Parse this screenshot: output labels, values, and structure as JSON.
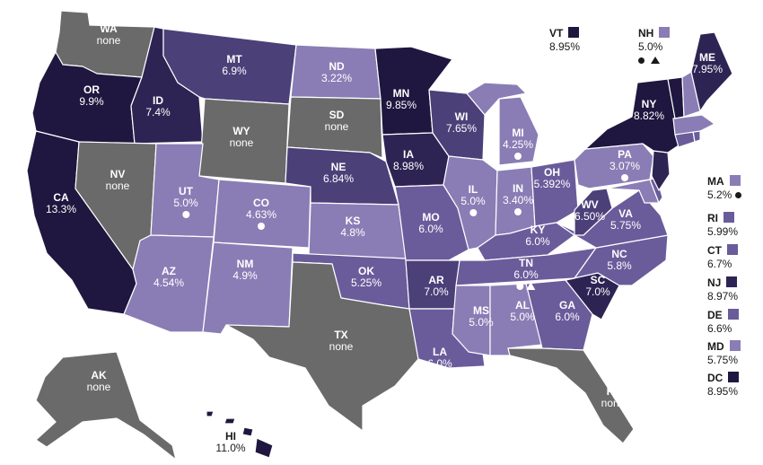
{
  "colors": {
    "none": "#6a6a6a",
    "light": "#8a7db5",
    "mid": "#6a5c9b",
    "darkmid": "#4c4079",
    "dark": "#2e2454",
    "darkest": "#1f173f"
  },
  "states": {
    "WA": {
      "abbr": "WA",
      "value": "none"
    },
    "OR": {
      "abbr": "OR",
      "value": "9.9%"
    },
    "CA": {
      "abbr": "CA",
      "value": "13.3%"
    },
    "ID": {
      "abbr": "ID",
      "value": "7.4%"
    },
    "NV": {
      "abbr": "NV",
      "value": "none"
    },
    "MT": {
      "abbr": "MT",
      "value": "6.9%"
    },
    "WY": {
      "abbr": "WY",
      "value": "none"
    },
    "UT": {
      "abbr": "UT",
      "value": "5.0%"
    },
    "AZ": {
      "abbr": "AZ",
      "value": "4.54%"
    },
    "CO": {
      "abbr": "CO",
      "value": "4.63%"
    },
    "NM": {
      "abbr": "NM",
      "value": "4.9%"
    },
    "ND": {
      "abbr": "ND",
      "value": "3.22%"
    },
    "SD": {
      "abbr": "SD",
      "value": "none"
    },
    "NE": {
      "abbr": "NE",
      "value": "6.84%"
    },
    "KS": {
      "abbr": "KS",
      "value": "4.8%"
    },
    "OK": {
      "abbr": "OK",
      "value": "5.25%"
    },
    "TX": {
      "abbr": "TX",
      "value": "none"
    },
    "MN": {
      "abbr": "MN",
      "value": "9.85%"
    },
    "IA": {
      "abbr": "IA",
      "value": "8.98%"
    },
    "MO": {
      "abbr": "MO",
      "value": "6.0%"
    },
    "AR": {
      "abbr": "AR",
      "value": "7.0%"
    },
    "LA": {
      "abbr": "LA",
      "value": "6.0%"
    },
    "WI": {
      "abbr": "WI",
      "value": "7.65%"
    },
    "IL": {
      "abbr": "IL",
      "value": "5.0%"
    },
    "MI": {
      "abbr": "MI",
      "value": "4.25%"
    },
    "IN": {
      "abbr": "IN",
      "value": "3.40%"
    },
    "OH": {
      "abbr": "OH",
      "value": "5.392%"
    },
    "KY": {
      "abbr": "KY",
      "value": "6.0%"
    },
    "TN": {
      "abbr": "TN",
      "value": "6.0%"
    },
    "MS": {
      "abbr": "MS",
      "value": "5.0%"
    },
    "AL": {
      "abbr": "AL",
      "value": "5.0%"
    },
    "GA": {
      "abbr": "GA",
      "value": "6.0%"
    },
    "FL": {
      "abbr": "FL",
      "value": "none"
    },
    "SC": {
      "abbr": "SC",
      "value": "7.0%"
    },
    "NC": {
      "abbr": "NC",
      "value": "5.8%"
    },
    "VA": {
      "abbr": "VA",
      "value": "5.75%"
    },
    "WV": {
      "abbr": "WV",
      "value": "6.50%"
    },
    "PA": {
      "abbr": "PA",
      "value": "3.07%"
    },
    "NY": {
      "abbr": "NY",
      "value": "8.82%"
    },
    "ME": {
      "abbr": "ME",
      "value": "7.95%"
    },
    "AK": {
      "abbr": "AK",
      "value": "none"
    },
    "HI": {
      "abbr": "HI",
      "value": "11.0%"
    }
  },
  "top_callouts": {
    "VT": {
      "abbr": "VT",
      "value": "8.95%"
    },
    "NH": {
      "abbr": "NH",
      "value": "5.0%"
    }
  },
  "side_callouts": [
    {
      "abbr": "MA",
      "value": "5.2%",
      "marker": "circle"
    },
    {
      "abbr": "RI",
      "value": "5.99%"
    },
    {
      "abbr": "CT",
      "value": "6.7%"
    },
    {
      "abbr": "NJ",
      "value": "8.97%"
    },
    {
      "abbr": "DE",
      "value": "6.6%"
    },
    {
      "abbr": "MD",
      "value": "5.75%"
    },
    {
      "abbr": "DC",
      "value": "8.95%"
    }
  ]
}
